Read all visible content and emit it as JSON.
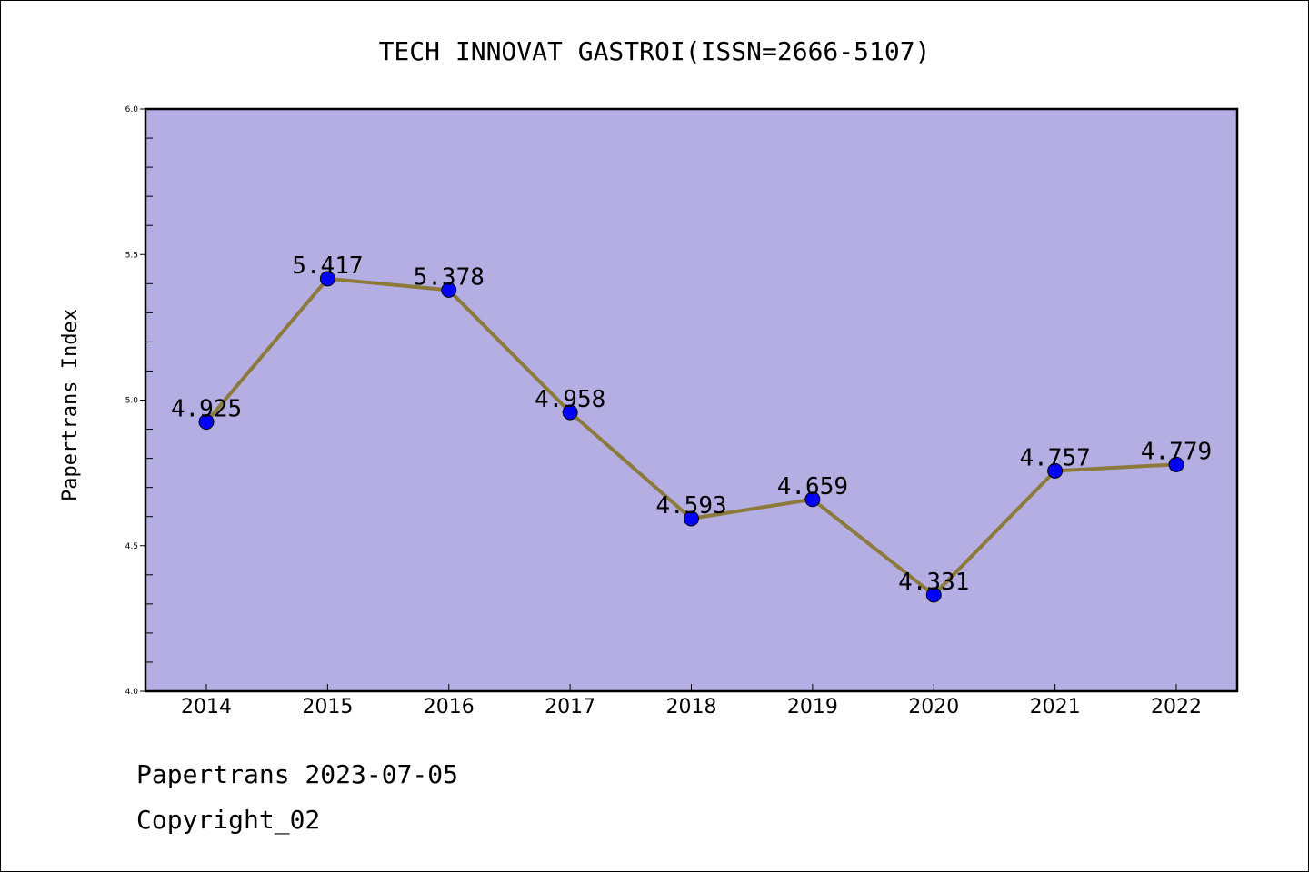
{
  "chart_data": {
    "type": "line",
    "title": "TECH INNOVAT GASTROI(ISSN=2666-5107)",
    "xlabel": "",
    "ylabel": "Papertrans Index",
    "categories": [
      "2014",
      "2015",
      "2016",
      "2017",
      "2018",
      "2019",
      "2020",
      "2021",
      "2022"
    ],
    "values": [
      4.925,
      5.417,
      5.378,
      4.958,
      4.593,
      4.659,
      4.331,
      4.757,
      4.779
    ],
    "value_labels": [
      "4.925",
      "5.417",
      "5.378",
      "4.958",
      "4.593",
      "4.659",
      "4.331",
      "4.757",
      "4.779"
    ],
    "ylim": [
      4.0,
      6.0
    ],
    "yticks": [
      "4.0",
      "4.5",
      "5.0",
      "5.5",
      "6.0"
    ],
    "grid": false,
    "colors": {
      "plot_background": "#b5aee2",
      "line": "#8c7a3c",
      "marker": "#0000ff"
    }
  },
  "footer": {
    "date_line": "Papertrans 2023-07-05",
    "copyright": "Copyright_02"
  }
}
